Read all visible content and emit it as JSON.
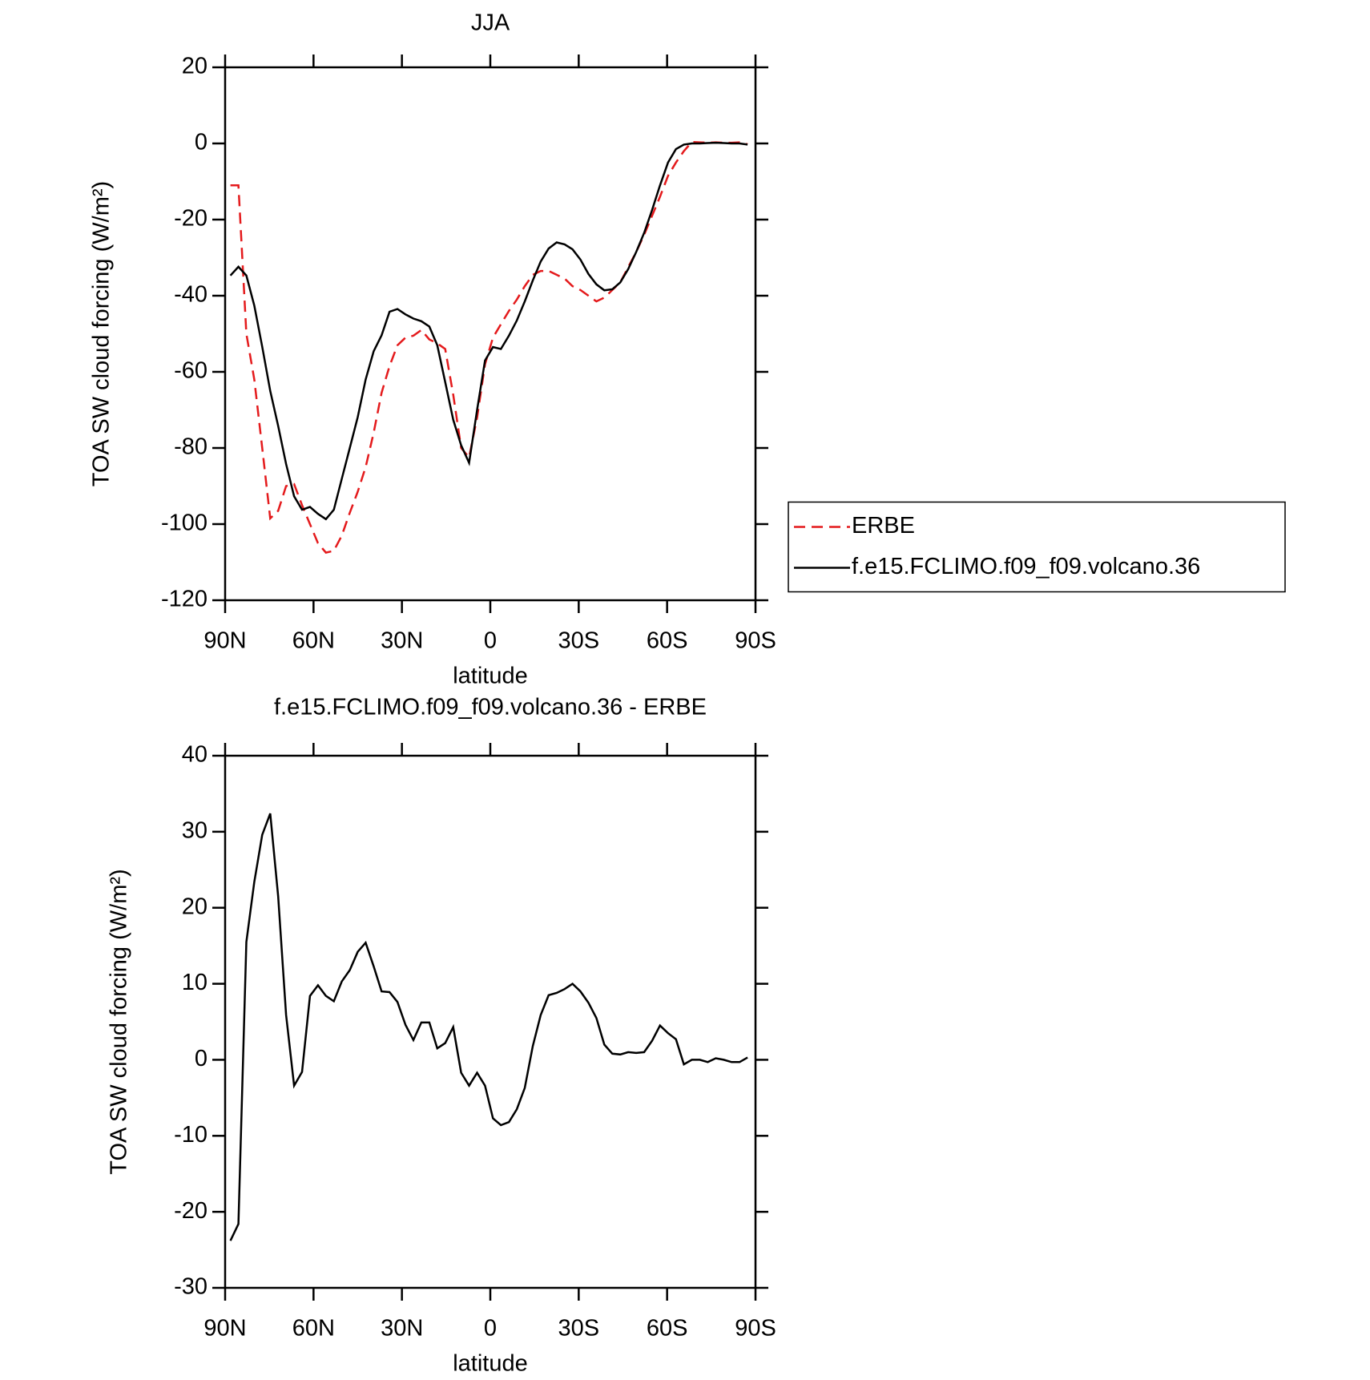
{
  "chart_data": [
    {
      "type": "line",
      "title": "JJA",
      "xlabel": "latitude",
      "ylabel": "TOA SW cloud forcing (W/m²)",
      "x": [
        88.2,
        85.5,
        82.8,
        80.1,
        77.4,
        74.7,
        72,
        69.3,
        66.6,
        63.9,
        61.2,
        58.5,
        55.8,
        53.1,
        50.4,
        47.7,
        45,
        42.3,
        39.6,
        36.9,
        34.2,
        31.5,
        28.8,
        26.1,
        23.4,
        20.7,
        18,
        15.3,
        12.6,
        9.9,
        7.2,
        4.5,
        1.8,
        -0.9,
        -3.6,
        -6.3,
        -9,
        -11.7,
        -14.4,
        -17.1,
        -19.8,
        -22.5,
        -25.2,
        -27.9,
        -30.6,
        -33.3,
        -36,
        -38.7,
        -41.4,
        -44.1,
        -46.8,
        -49.5,
        -52.2,
        -54.9,
        -57.6,
        -60.3,
        -63,
        -65.7,
        -68.4,
        -71.1,
        -73.8,
        -76.5,
        -79.2,
        -81.9,
        -84.6,
        -87.3
      ],
      "xlim": [
        90,
        -90
      ],
      "xticks": [
        {
          "value": 90,
          "label": "90N"
        },
        {
          "value": 60,
          "label": "60N"
        },
        {
          "value": 30,
          "label": "30N"
        },
        0,
        {
          "value": -30,
          "label": "30S"
        },
        {
          "value": -60,
          "label": "60S"
        },
        {
          "value": -90,
          "label": "90S"
        }
      ],
      "ylim": [
        -120,
        20
      ],
      "yticks": [
        20,
        0,
        -20,
        -40,
        -60,
        -80,
        -100,
        -120
      ],
      "legend": "right",
      "series": [
        {
          "name": "ERBE",
          "color": "#e41a1c",
          "linestyle": "dashed",
          "values": [
            -11,
            -11,
            -50,
            -62,
            -80,
            -98.5,
            -96.5,
            -90,
            -89.5,
            -95,
            -100,
            -105,
            -107.5,
            -107,
            -103,
            -97,
            -91.5,
            -85,
            -76,
            -65.5,
            -58.5,
            -53,
            -51,
            -50.5,
            -49,
            -51.5,
            -52.5,
            -54,
            -66,
            -80,
            -82.5,
            -72,
            -58,
            -51,
            -47.5,
            -44,
            -41,
            -37.5,
            -34.5,
            -33.5,
            -33.5,
            -34.5,
            -35.5,
            -37.5,
            -38.5,
            -40,
            -41.5,
            -40.5,
            -38.5,
            -36.5,
            -32.5,
            -28.5,
            -24,
            -19,
            -14,
            -8.5,
            -5,
            -2,
            0.4,
            0.3,
            0.2,
            0.3,
            0.2,
            0.2,
            0.3,
            -0.2
          ]
        },
        {
          "name": "f.e15.FCLIMO.f09_f09.volcano.36",
          "color": "#000000",
          "linestyle": "solid",
          "values": [
            -34.7,
            -32.4,
            -34.7,
            -42.6,
            -53.4,
            -65,
            -74.2,
            -84.2,
            -92.7,
            -96.2,
            -95.5,
            -97.3,
            -98.7,
            -96.2,
            -88.1,
            -80,
            -71.9,
            -62,
            -54.6,
            -50.4,
            -44.2,
            -43.5,
            -44.9,
            -46,
            -46.7,
            -48.1,
            -53,
            -62.7,
            -72.6,
            -79.3,
            -83.9,
            -70,
            -57,
            -53.5,
            -54,
            -50.5,
            -46.5,
            -41.5,
            -36,
            -31,
            -27.6,
            -26,
            -26.5,
            -27.8,
            -30.5,
            -34.3,
            -37,
            -38.6,
            -38.3,
            -36.5,
            -33,
            -28.5,
            -23.5,
            -17.5,
            -11,
            -5,
            -1.5,
            -0.3,
            0,
            0,
            0.1,
            0.2,
            0.1,
            0,
            0,
            -0.3
          ]
        }
      ]
    },
    {
      "type": "line",
      "title": "f.e15.FCLIMO.f09_f09.volcano.36 - ERBE",
      "xlabel": "latitude",
      "ylabel": "TOA SW cloud forcing (W/m²)",
      "x": [
        88.2,
        85.5,
        82.8,
        80.1,
        77.4,
        74.7,
        72,
        69.3,
        66.6,
        63.9,
        61.2,
        58.5,
        55.8,
        53.1,
        50.4,
        47.7,
        45,
        42.3,
        39.6,
        36.9,
        34.2,
        31.5,
        28.8,
        26.1,
        23.4,
        20.7,
        18,
        15.3,
        12.6,
        9.9,
        7.2,
        4.5,
        1.8,
        -0.9,
        -3.6,
        -6.3,
        -9,
        -11.7,
        -14.4,
        -17.1,
        -19.8,
        -22.5,
        -25.2,
        -27.9,
        -30.6,
        -33.3,
        -36,
        -38.7,
        -41.4,
        -44.1,
        -46.8,
        -49.5,
        -52.2,
        -54.9,
        -57.6,
        -60.3,
        -63,
        -65.7,
        -68.4,
        -71.1,
        -73.8,
        -76.5,
        -79.2,
        -81.9,
        -84.6,
        -87.3
      ],
      "xlim": [
        90,
        -90
      ],
      "xticks": [
        {
          "value": 90,
          "label": "90N"
        },
        {
          "value": 60,
          "label": "60N"
        },
        {
          "value": 30,
          "label": "30N"
        },
        0,
        {
          "value": -30,
          "label": "30S"
        },
        {
          "value": -60,
          "label": "60S"
        },
        {
          "value": -90,
          "label": "90S"
        }
      ],
      "ylim": [
        -30,
        40
      ],
      "yticks": [
        40,
        30,
        20,
        10,
        0,
        -10,
        -20,
        -30
      ],
      "series": [
        {
          "color": "#000000",
          "linestyle": "solid",
          "values": [
            -23.8,
            -21.6,
            15.5,
            23.4,
            29.6,
            32.4,
            21.5,
            5.9,
            -3.4,
            -1.6,
            8.4,
            9.8,
            8.4,
            7.7,
            10.3,
            11.8,
            14.2,
            15.4,
            12.3,
            9,
            8.9,
            7.6,
            4.6,
            2.6,
            4.9,
            4.9,
            1.5,
            2.2,
            4.3,
            -1.7,
            -3.4,
            -1.7,
            -3.4,
            -7.7,
            -8.6,
            -8.2,
            -6.5,
            -3.7,
            1.8,
            5.9,
            8.5,
            8.8,
            9.3,
            10,
            9,
            7.5,
            5.5,
            2,
            0.8,
            0.7,
            1,
            0.9,
            1,
            2.5,
            4.5,
            3.5,
            2.7,
            -0.6,
            0,
            0,
            -0.3,
            0.2,
            0,
            -0.3,
            -0.3,
            0.3
          ]
        }
      ]
    }
  ]
}
